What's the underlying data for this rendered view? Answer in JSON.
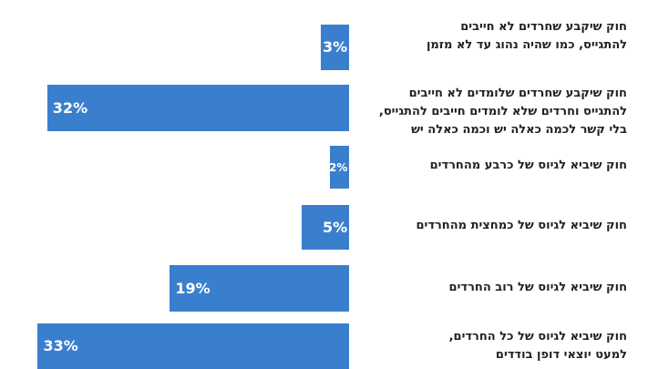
{
  "chart_data": {
    "type": "bar",
    "orientation": "horizontal",
    "bar_color": "#3a7fce",
    "value_suffix": "%",
    "categories": [
      [
        "חוק שיקבע שחרדים לא חייבים",
        "להתגייס, כמו שהיה נהוג עד לא מזמן"
      ],
      [
        "חוק שיקבע שחרדים שלומדים לא חייבים",
        "להתגייס וחרדים שלא לומדים חייבים להתגייס,",
        "בלי קשר לכמה כאלה יש וכמה כאלה יש"
      ],
      [
        "חוק שיביא לגיוס של כרבע מהחרדים"
      ],
      [
        "חוק שיביא לגיוס של כמחצית מהחרדים"
      ],
      [
        "חוק שיביא לגיוס של רוב החרדים"
      ],
      [
        "חוק שיביא לגיוס של כל החרדים,",
        "למעט יוצאי דופן בודדים"
      ]
    ],
    "values": [
      3,
      32,
      2,
      5,
      19,
      33
    ],
    "value_labels": [
      "3%",
      "32%",
      "2%",
      "5%",
      "19%",
      "33%"
    ]
  }
}
